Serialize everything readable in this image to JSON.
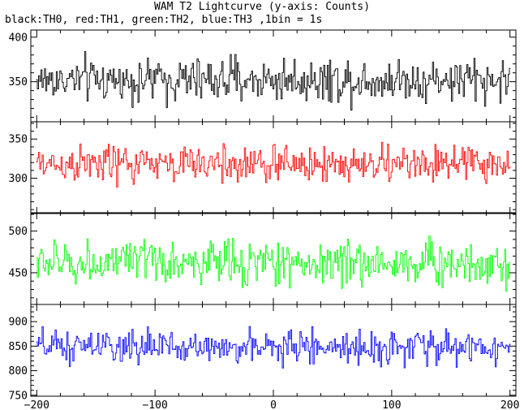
{
  "chart_data": {
    "type": "line",
    "title": "WAM T2 Lightcurve (y-axis: Counts)",
    "subtitle": "black:TH0, red:TH1, green:TH2, blue:TH3 ,1bin = 1s",
    "xlim": [
      -205,
      205
    ],
    "x_ticks": [
      -200,
      -100,
      0,
      100,
      200
    ],
    "x_tick_labels": [
      "−200",
      "−100",
      "0",
      "100",
      "200"
    ],
    "panels": [
      {
        "series_name": "TH0",
        "color": "#000000",
        "ylim": [
          305,
          408
        ],
        "yticks": [
          350,
          400
        ],
        "mean": 352,
        "amplitude": 22
      },
      {
        "series_name": "TH1",
        "color": "#ff0000",
        "ylim": [
          255,
          372
        ],
        "yticks": [
          300,
          350
        ],
        "mean": 318,
        "amplitude": 22
      },
      {
        "series_name": "TH2",
        "color": "#00ff00",
        "ylim": [
          412,
          522
        ],
        "yticks": [
          450,
          500
        ],
        "mean": 462,
        "amplitude": 24
      },
      {
        "series_name": "TH3",
        "color": "#0000ff",
        "ylim": [
          748,
          935
        ],
        "yticks": [
          750,
          800,
          850,
          900
        ],
        "mean": 848,
        "amplitude": 30
      }
    ],
    "grid": false
  }
}
